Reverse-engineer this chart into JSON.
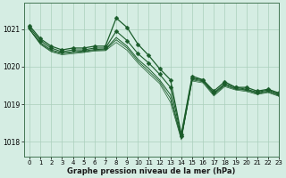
{
  "title": "Graphe pression niveau de la mer (hPa)",
  "bg_color": "#d5ede3",
  "grid_color": "#aacfbc",
  "line_color": "#1a5c2a",
  "xlim": [
    -0.5,
    23
  ],
  "ylim": [
    1017.6,
    1021.7
  ],
  "yticks": [
    1018,
    1019,
    1020,
    1021
  ],
  "xticks": [
    0,
    1,
    2,
    3,
    4,
    5,
    6,
    7,
    8,
    9,
    10,
    11,
    12,
    13,
    14,
    15,
    16,
    17,
    18,
    19,
    20,
    21,
    22,
    23
  ],
  "series1_x": [
    0,
    1,
    2,
    3,
    4,
    5,
    6,
    7,
    8,
    9,
    10,
    11,
    12,
    13,
    14,
    15,
    16,
    17,
    18,
    19,
    20,
    21,
    22,
    23
  ],
  "series1_y": [
    1021.1,
    1020.75,
    1020.55,
    1020.45,
    1020.5,
    1020.5,
    1020.55,
    1020.55,
    1021.3,
    1021.05,
    1020.6,
    1020.3,
    1019.95,
    1019.65,
    1018.2,
    1019.75,
    1019.65,
    1019.35,
    1019.6,
    1019.45,
    1019.45,
    1019.35,
    1019.4,
    1019.3
  ],
  "series2_x": [
    0,
    1,
    2,
    3,
    4,
    5,
    6,
    7,
    8,
    9,
    10,
    11,
    12,
    13,
    14,
    15,
    16,
    17,
    18,
    19,
    20,
    21,
    22,
    23
  ],
  "series2_y": [
    1021.05,
    1020.7,
    1020.5,
    1020.4,
    1020.45,
    1020.45,
    1020.5,
    1020.5,
    1020.95,
    1020.7,
    1020.35,
    1020.1,
    1019.8,
    1019.45,
    1018.15,
    1019.7,
    1019.65,
    1019.3,
    1019.55,
    1019.45,
    1019.4,
    1019.32,
    1019.38,
    1019.27
  ],
  "series3_x": [
    0,
    1,
    2,
    3,
    4,
    5,
    6,
    7,
    8,
    9,
    10,
    11,
    12,
    13,
    14,
    15,
    16,
    17,
    18,
    19,
    20,
    21,
    22,
    23
  ],
  "series3_y": [
    1021.0,
    1020.65,
    1020.45,
    1020.37,
    1020.4,
    1020.42,
    1020.46,
    1020.47,
    1020.78,
    1020.55,
    1020.2,
    1019.95,
    1019.65,
    1019.25,
    1018.1,
    1019.68,
    1019.62,
    1019.28,
    1019.52,
    1019.42,
    1019.38,
    1019.3,
    1019.35,
    1019.25
  ],
  "series4_x": [
    0,
    1,
    2,
    3,
    4,
    5,
    6,
    7,
    8,
    9,
    10,
    11,
    12,
    13,
    14,
    15,
    16,
    17,
    18,
    19,
    20,
    21,
    22,
    23
  ],
  "series4_y": [
    1021.0,
    1020.62,
    1020.42,
    1020.35,
    1020.38,
    1020.4,
    1020.44,
    1020.45,
    1020.72,
    1020.5,
    1020.15,
    1019.88,
    1019.6,
    1019.15,
    1018.08,
    1019.65,
    1019.6,
    1019.25,
    1019.5,
    1019.4,
    1019.37,
    1019.28,
    1019.33,
    1019.23
  ],
  "series5_x": [
    0,
    1,
    2,
    3,
    4,
    5,
    6,
    7,
    8,
    9,
    10,
    11,
    12,
    13,
    14,
    15,
    16,
    17,
    18,
    19,
    20,
    21,
    22,
    23
  ],
  "series5_y": [
    1021.0,
    1020.6,
    1020.4,
    1020.32,
    1020.35,
    1020.38,
    1020.42,
    1020.43,
    1020.65,
    1020.44,
    1020.1,
    1019.82,
    1019.55,
    1019.05,
    1018.05,
    1019.62,
    1019.57,
    1019.22,
    1019.47,
    1019.38,
    1019.34,
    1019.26,
    1019.31,
    1019.21
  ]
}
